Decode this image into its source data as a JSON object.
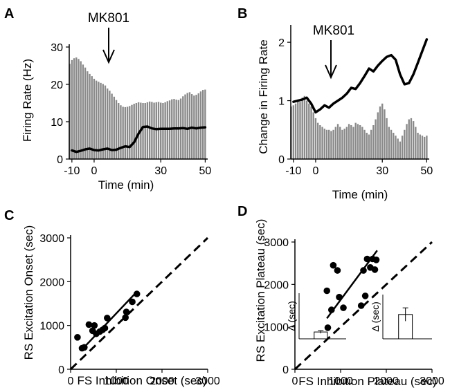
{
  "figure": {
    "panel_labels": [
      "A",
      "B",
      "C",
      "D"
    ]
  },
  "chart_data": [
    {
      "panel": "A",
      "type": "bar",
      "xlabel": "Time (min)",
      "ylabel": "Firing Rate (Hz)",
      "xticks": [
        "-10",
        "0",
        "30",
        "50"
      ],
      "xtick_values": [
        -10,
        0,
        30,
        50
      ],
      "yticks": [
        "0",
        "10",
        "20",
        "30"
      ],
      "ytick_values": [
        0,
        10,
        20,
        30
      ],
      "xlim": [
        -11.2,
        50.5
      ],
      "ylim": [
        0,
        30
      ],
      "annotation": "MK801",
      "annotation_x": 5,
      "bar_color": "#8a8a8a",
      "bars_x": [
        -11,
        -10,
        -9,
        -8,
        -7,
        -6,
        -5,
        -4,
        -3,
        -2,
        -1,
        0,
        1,
        2,
        3,
        4,
        5,
        6,
        7,
        8,
        9,
        10,
        11,
        12,
        13,
        14,
        15,
        16,
        17,
        18,
        19,
        20,
        21,
        22,
        23,
        24,
        25,
        26,
        27,
        28,
        29,
        30,
        31,
        32,
        33,
        34,
        35,
        36,
        37,
        38,
        39,
        40,
        41,
        42,
        43,
        44,
        45,
        46,
        47,
        48,
        49,
        50
      ],
      "bars_y": [
        25.5,
        26.5,
        27,
        27.2,
        26.8,
        26.2,
        25.3,
        24.5,
        23.5,
        22.8,
        22.2,
        21.5,
        21,
        20.7,
        20.4,
        20.1,
        19.7,
        18.9,
        18.3,
        17.5,
        16.7,
        15.8,
        15,
        14.4,
        14,
        13.9,
        14,
        14.2,
        14.5,
        14.8,
        15,
        15.2,
        15.1,
        15,
        15,
        15.2,
        15.4,
        15.3,
        15.1,
        15.2,
        15.3,
        15.1,
        15,
        15.2,
        15.5,
        15.7,
        16,
        16.1,
        15.9,
        15.8,
        16.2,
        16.8,
        17.3,
        17.7,
        17.9,
        17.4,
        17,
        17.2,
        17.6,
        18.1,
        18.5,
        18.6
      ],
      "line_x": [
        -10,
        -8,
        -6,
        -4,
        -2,
        0,
        2,
        4,
        6,
        8,
        10,
        12,
        14,
        16,
        18,
        20,
        22,
        24,
        26,
        28,
        30,
        32,
        34,
        36,
        38,
        40,
        42,
        44,
        46,
        48,
        50
      ],
      "line_y": [
        2.3,
        1.9,
        2.2,
        2.6,
        2.8,
        2.4,
        2.3,
        2.6,
        2.8,
        2.4,
        2.5,
        3,
        3.4,
        3.2,
        4.5,
        6.8,
        8.6,
        8.7,
        8.2,
        8,
        8.1,
        8.1,
        8.1,
        8.2,
        8.2,
        8.3,
        8.1,
        8.4,
        8.2,
        8.4,
        8.5
      ]
    },
    {
      "panel": "B",
      "type": "bar",
      "xlabel": "Time (min)",
      "ylabel": "Change in Firing Rate",
      "xticks": [
        "-10",
        "0",
        "30",
        "50"
      ],
      "xtick_values": [
        -10,
        0,
        30,
        50
      ],
      "yticks": [
        "0",
        "1",
        "2"
      ],
      "ytick_values": [
        0,
        1,
        2
      ],
      "xlim": [
        -11.2,
        50.5
      ],
      "ylim": [
        0,
        2.25
      ],
      "annotation": "MK801",
      "annotation_x": 5,
      "bar_color": "#8a8a8a",
      "bars_x": [
        -11,
        -10,
        -9,
        -8,
        -7,
        -6,
        -5,
        -4,
        -3,
        -2,
        -1,
        0,
        1,
        2,
        3,
        4,
        5,
        6,
        7,
        8,
        9,
        10,
        11,
        12,
        13,
        14,
        15,
        16,
        17,
        18,
        19,
        20,
        21,
        22,
        23,
        24,
        25,
        26,
        27,
        28,
        29,
        30,
        31,
        32,
        33,
        34,
        35,
        36,
        37,
        38,
        39,
        40,
        41,
        42,
        43,
        44,
        45,
        46,
        47,
        48,
        49,
        50
      ],
      "bars_y": [
        0.9,
        0.92,
        0.95,
        1.02,
        0.98,
        1.05,
        1.08,
        1.0,
        0.95,
        0.9,
        0.8,
        0.7,
        0.62,
        0.58,
        0.55,
        0.52,
        0.5,
        0.5,
        0.48,
        0.5,
        0.55,
        0.6,
        0.55,
        0.5,
        0.52,
        0.55,
        0.6,
        0.58,
        0.55,
        0.62,
        0.6,
        0.58,
        0.55,
        0.5,
        0.45,
        0.42,
        0.5,
        0.58,
        0.68,
        0.8,
        0.9,
        0.95,
        0.85,
        0.7,
        0.55,
        0.5,
        0.45,
        0.4,
        0.35,
        0.3,
        0.4,
        0.5,
        0.6,
        0.68,
        0.7,
        0.65,
        0.55,
        0.45,
        0.42,
        0.4,
        0.38,
        0.4
      ],
      "line_x": [
        -10,
        -8,
        -6,
        -4,
        -2,
        0,
        2,
        4,
        6,
        8,
        10,
        12,
        14,
        16,
        18,
        20,
        22,
        24,
        26,
        28,
        30,
        32,
        34,
        36,
        38,
        40,
        42,
        44,
        46,
        48,
        50
      ],
      "line_y": [
        0.98,
        1.0,
        1.02,
        1.05,
        0.95,
        0.8,
        0.85,
        0.92,
        0.88,
        0.95,
        1.0,
        1.05,
        1.12,
        1.22,
        1.2,
        1.3,
        1.42,
        1.55,
        1.5,
        1.6,
        1.68,
        1.75,
        1.78,
        1.7,
        1.45,
        1.28,
        1.3,
        1.45,
        1.65,
        1.85,
        2.05
      ]
    },
    {
      "panel": "C",
      "type": "scatter",
      "xlabel": "FS Inhibition Onset (sec)",
      "ylabel": "RS Excitation Onset (sec)",
      "xticks": [
        "0",
        "1000",
        "2000",
        "3000"
      ],
      "xtick_values": [
        0,
        1000,
        2000,
        3000
      ],
      "yticks": [
        "0",
        "1000",
        "2000",
        "3000"
      ],
      "ytick_values": [
        0,
        1000,
        2000,
        3000
      ],
      "xlim": [
        0,
        3000
      ],
      "ylim": [
        0,
        3000
      ],
      "points": [
        [
          150,
          730
        ],
        [
          250,
          480
        ],
        [
          300,
          500
        ],
        [
          400,
          1020
        ],
        [
          480,
          880
        ],
        [
          520,
          1000
        ],
        [
          560,
          810
        ],
        [
          640,
          860
        ],
        [
          700,
          900
        ],
        [
          750,
          940
        ],
        [
          800,
          1170
        ],
        [
          1200,
          1180
        ],
        [
          1220,
          1310
        ],
        [
          1350,
          1540
        ],
        [
          1450,
          1720
        ]
      ],
      "fit_line": [
        [
          230,
          430
        ],
        [
          1450,
          1770
        ]
      ],
      "unity_line": [
        [
          0,
          0
        ],
        [
          3000,
          3000
        ]
      ],
      "inset": {
        "ylabel": "Δ (sec)",
        "bar_value": 0.15,
        "error": 0.03
      }
    },
    {
      "panel": "D",
      "type": "scatter",
      "xlabel": "FS Inhibition Plateau (sec)",
      "ylabel": "RS Excitation Plateau (sec)",
      "xticks": [
        "0",
        "1000",
        "2000",
        "3000"
      ],
      "xtick_values": [
        0,
        1000,
        2000,
        3000
      ],
      "yticks": [
        "0",
        "1000",
        "2000",
        "3000"
      ],
      "ytick_values": [
        0,
        1000,
        2000,
        3000
      ],
      "xlim": [
        0,
        3000
      ],
      "ylim": [
        0,
        3000
      ],
      "points": [
        [
          700,
          1850
        ],
        [
          720,
          980
        ],
        [
          800,
          1400
        ],
        [
          840,
          2450
        ],
        [
          930,
          2330
        ],
        [
          970,
          1700
        ],
        [
          1060,
          1450
        ],
        [
          1450,
          1500
        ],
        [
          1500,
          2330
        ],
        [
          1540,
          1730
        ],
        [
          1580,
          2600
        ],
        [
          1650,
          2400
        ],
        [
          1700,
          2600
        ],
        [
          1750,
          2350
        ],
        [
          1780,
          2580
        ]
      ],
      "fit_line": [
        [
          700,
          1200
        ],
        [
          1800,
          2800
        ]
      ],
      "unity_line": [
        [
          0,
          0
        ],
        [
          3000,
          3000
        ]
      ],
      "inset": {
        "ylabel": "Δ (sec)",
        "bar_value": 0.55,
        "error": 0.15
      }
    }
  ]
}
